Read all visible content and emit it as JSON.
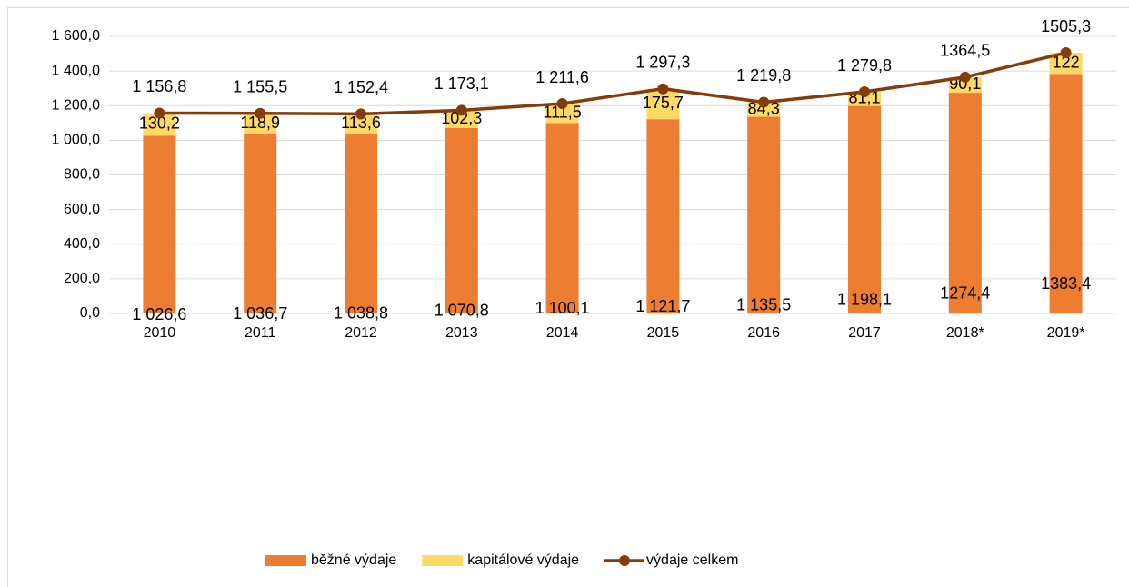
{
  "chart_data": {
    "type": "bar",
    "stacked": true,
    "categories": [
      "2010",
      "2011",
      "2012",
      "2013",
      "2014",
      "2015",
      "2016",
      "2017",
      "2018*",
      "2019*"
    ],
    "series": [
      {
        "name": "běžné výdaje",
        "color": "#ed7d31",
        "type": "bar",
        "values": [
          1026.6,
          1036.7,
          1038.8,
          1070.8,
          1100.1,
          1121.7,
          1135.5,
          1198.1,
          1274.4,
          1383.4
        ],
        "value_labels": [
          "1 026,6",
          "1 036,7",
          "1 038,8",
          "1 070,8",
          "1 100,1",
          "1 121,7",
          "1 135,5",
          "1 198,1",
          "1274,4",
          "1383,4"
        ]
      },
      {
        "name": "kapitálové výdaje",
        "color": "#ffd966",
        "type": "bar",
        "values": [
          130.2,
          118.9,
          113.6,
          102.3,
          111.5,
          175.7,
          84.3,
          81.1,
          90.1,
          122
        ],
        "value_labels": [
          "130,2",
          "118,9",
          "113,6",
          "102,3",
          "111,5",
          "175,7",
          "84,3",
          "81,1",
          "90,1",
          "122"
        ]
      },
      {
        "name": "výdaje celkem",
        "color": "#843c0c",
        "type": "line",
        "values": [
          1156.8,
          1155.5,
          1152.4,
          1173.1,
          1211.6,
          1297.3,
          1219.8,
          1279.8,
          1364.5,
          1505.3
        ],
        "value_labels": [
          "1 156,8",
          "1 155,5",
          "1 152,4",
          "1 173,1",
          "1 211,6",
          "1 297,3",
          "1 219,8",
          "1 279,8",
          "1364,5",
          "1505,3"
        ]
      }
    ],
    "ylim": [
      0,
      1600
    ],
    "yticks": [
      {
        "value": 0,
        "label": "0,0"
      },
      {
        "value": 200,
        "label": "200,0"
      },
      {
        "value": 400,
        "label": "400,0"
      },
      {
        "value": 600,
        "label": "600,0"
      },
      {
        "value": 800,
        "label": "800,0"
      },
      {
        "value": 1000,
        "label": "1 000,0"
      },
      {
        "value": 1200,
        "label": "1 200,0"
      },
      {
        "value": 1400,
        "label": "1 400,0"
      },
      {
        "value": 1600,
        "label": "1 600,0"
      }
    ],
    "grid": true,
    "legend": "bottom"
  }
}
